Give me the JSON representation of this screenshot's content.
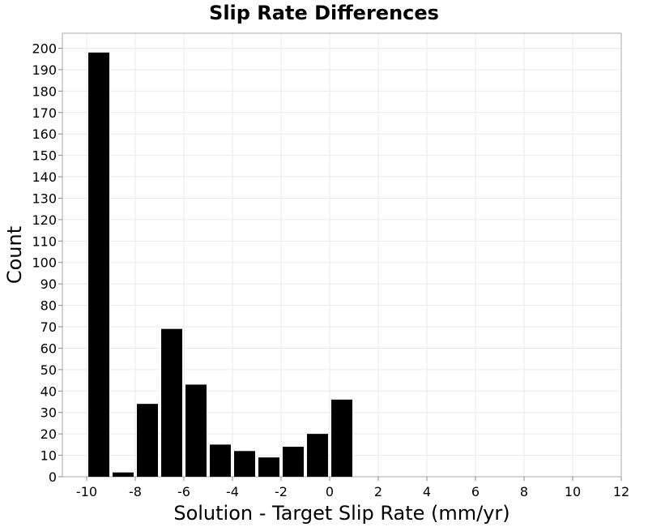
{
  "chart_data": {
    "type": "bar",
    "title": "Slip Rate Differences",
    "xlabel": "Solution - Target Slip Rate (mm/yr)",
    "ylabel": "Count",
    "xlim": [
      -11,
      12
    ],
    "ylim": [
      0,
      207
    ],
    "xticks": [
      -10,
      -8,
      -6,
      -4,
      -2,
      0,
      2,
      4,
      6,
      8,
      10,
      12
    ],
    "yticks": [
      0,
      10,
      20,
      30,
      40,
      50,
      60,
      70,
      80,
      90,
      100,
      110,
      120,
      130,
      140,
      150,
      160,
      170,
      180,
      190,
      200
    ],
    "grid": true,
    "bar_color": "#000000",
    "bin_width": 1,
    "x": [
      -9.5,
      -8.5,
      -7.5,
      -6.5,
      -5.5,
      -4.5,
      -3.5,
      -2.5,
      -1.5,
      -0.5,
      0.5
    ],
    "values": [
      198,
      2,
      34,
      69,
      43,
      15,
      12,
      9,
      14,
      20,
      36
    ]
  }
}
